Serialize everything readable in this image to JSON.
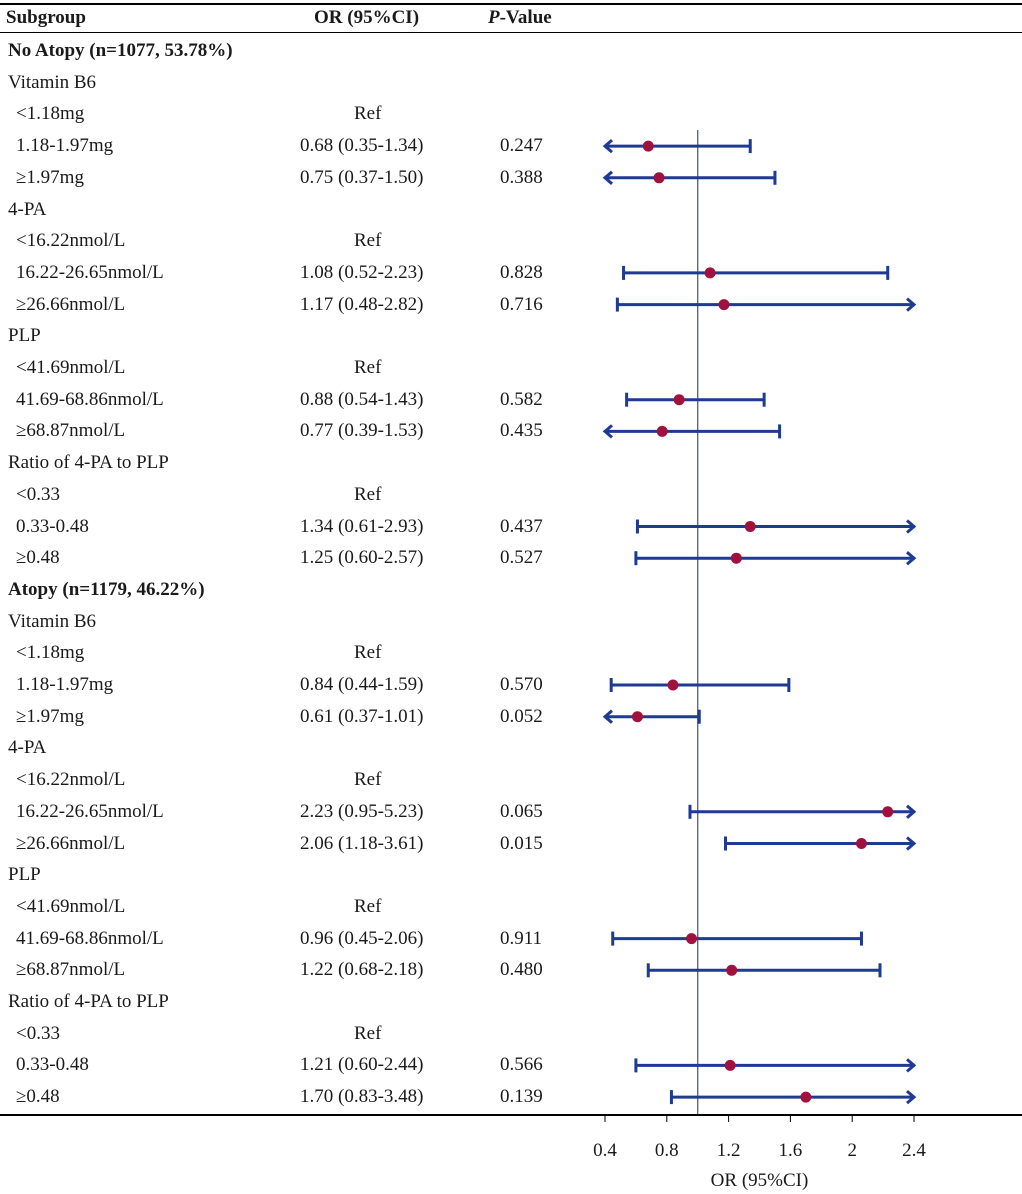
{
  "header": {
    "subgroup": "Subgroup",
    "or": "OR (95%CI)",
    "p_prefix": "P",
    "p_suffix": "-Value"
  },
  "rows": [
    {
      "label": "No Atopy (n=1077, 53.78%)",
      "kind": "group"
    },
    {
      "label": "Vitamin B6",
      "kind": "var"
    },
    {
      "label": "<1.18mg",
      "kind": "sub",
      "or": "Ref",
      "p": ""
    },
    {
      "label": "1.18-1.97mg",
      "kind": "sub",
      "or": "0.68 (0.35-1.34)",
      "p": "0.247"
    },
    {
      "label": "≥1.97mg",
      "kind": "sub",
      "or": "0.75 (0.37-1.50)",
      "p": "0.388"
    },
    {
      "label": "4-PA",
      "kind": "var"
    },
    {
      "label": "<16.22nmol/L",
      "kind": "sub",
      "or": "Ref",
      "p": ""
    },
    {
      "label": "16.22-26.65nmol/L",
      "kind": "sub",
      "or": "1.08 (0.52-2.23)",
      "p": "0.828"
    },
    {
      "label": "≥26.66nmol/L",
      "kind": "sub",
      "or": "1.17 (0.48-2.82)",
      "p": "0.716"
    },
    {
      "label": "PLP",
      "kind": "var"
    },
    {
      "label": "<41.69nmol/L",
      "kind": "sub",
      "or": "Ref",
      "p": ""
    },
    {
      "label": "41.69-68.86nmol/L",
      "kind": "sub",
      "or": "0.88 (0.54-1.43)",
      "p": "0.582"
    },
    {
      "label": "≥68.87nmol/L",
      "kind": "sub",
      "or": "0.77 (0.39-1.53)",
      "p": "0.435"
    },
    {
      "label": "Ratio of 4-PA to PLP",
      "kind": "var"
    },
    {
      "label": "<0.33",
      "kind": "sub",
      "or": "Ref",
      "p": ""
    },
    {
      "label": "0.33-0.48",
      "kind": "sub",
      "or": "1.34 (0.61-2.93)",
      "p": "0.437"
    },
    {
      "label": "≥0.48",
      "kind": "sub",
      "or": "1.25 (0.60-2.57)",
      "p": "0.527"
    },
    {
      "label": "Atopy (n=1179, 46.22%)",
      "kind": "group"
    },
    {
      "label": "Vitamin B6",
      "kind": "var"
    },
    {
      "label": "<1.18mg",
      "kind": "sub",
      "or": "Ref",
      "p": ""
    },
    {
      "label": "1.18-1.97mg",
      "kind": "sub",
      "or": "0.84 (0.44-1.59)",
      "p": "0.570"
    },
    {
      "label": "≥1.97mg",
      "kind": "sub",
      "or": "0.61 (0.37-1.01)",
      "p": "0.052"
    },
    {
      "label": "4-PA",
      "kind": "var"
    },
    {
      "label": "<16.22nmol/L",
      "kind": "sub",
      "or": "Ref",
      "p": ""
    },
    {
      "label": "16.22-26.65nmol/L",
      "kind": "sub",
      "or": "2.23 (0.95-5.23)",
      "p": "0.065"
    },
    {
      "label": "≥26.66nmol/L",
      "kind": "sub",
      "or": "2.06 (1.18-3.61)",
      "p": "0.015"
    },
    {
      "label": "PLP",
      "kind": "var"
    },
    {
      "label": "<41.69nmol/L",
      "kind": "sub",
      "or": "Ref",
      "p": ""
    },
    {
      "label": "41.69-68.86nmol/L",
      "kind": "sub",
      "or": "0.96 (0.45-2.06)",
      "p": "0.911"
    },
    {
      "label": "≥68.87nmol/L",
      "kind": "sub",
      "or": "1.22 (0.68-2.18)",
      "p": "0.480"
    },
    {
      "label": "Ratio of 4-PA to PLP",
      "kind": "var"
    },
    {
      "label": "<0.33",
      "kind": "sub",
      "or": "Ref",
      "p": ""
    },
    {
      "label": "0.33-0.48",
      "kind": "sub",
      "or": "1.21 (0.60-2.44)",
      "p": "0.566"
    },
    {
      "label": "≥0.48",
      "kind": "sub",
      "or": "1.70 (0.83-3.48)",
      "p": "0.139"
    }
  ],
  "chart_data": {
    "type": "forest",
    "xlabel": "OR (95%CI)",
    "xlim": [
      0.4,
      2.4
    ],
    "ticks": [
      0.4,
      0.8,
      1.2,
      1.6,
      2,
      2.4
    ],
    "tick_labels": [
      "0.4",
      "0.8",
      "1.2",
      "1.6",
      "2",
      "2.4"
    ],
    "reference_line": 1,
    "colors": {
      "ci": "#1f3a93",
      "point": "#a0123d",
      "refline": "#5a6b8c",
      "rule": "#000000"
    },
    "estimates": [
      null,
      null,
      null,
      {
        "or": 0.68,
        "lo": 0.35,
        "hi": 1.34
      },
      {
        "or": 0.75,
        "lo": 0.37,
        "hi": 1.5
      },
      null,
      null,
      {
        "or": 1.08,
        "lo": 0.52,
        "hi": 2.23
      },
      {
        "or": 1.17,
        "lo": 0.48,
        "hi": 2.82
      },
      null,
      null,
      {
        "or": 0.88,
        "lo": 0.54,
        "hi": 1.43
      },
      {
        "or": 0.77,
        "lo": 0.39,
        "hi": 1.53
      },
      null,
      null,
      {
        "or": 1.34,
        "lo": 0.61,
        "hi": 2.93
      },
      {
        "or": 1.25,
        "lo": 0.6,
        "hi": 2.57
      },
      null,
      null,
      null,
      {
        "or": 0.84,
        "lo": 0.44,
        "hi": 1.59
      },
      {
        "or": 0.61,
        "lo": 0.37,
        "hi": 1.01
      },
      null,
      null,
      {
        "or": 2.23,
        "lo": 0.95,
        "hi": 5.23
      },
      {
        "or": 2.06,
        "lo": 1.18,
        "hi": 3.61
      },
      null,
      null,
      {
        "or": 0.96,
        "lo": 0.45,
        "hi": 2.06
      },
      {
        "or": 1.22,
        "lo": 0.68,
        "hi": 2.18
      },
      null,
      null,
      {
        "or": 1.21,
        "lo": 0.6,
        "hi": 2.44
      },
      {
        "or": 1.7,
        "lo": 0.83,
        "hi": 3.48
      }
    ]
  }
}
